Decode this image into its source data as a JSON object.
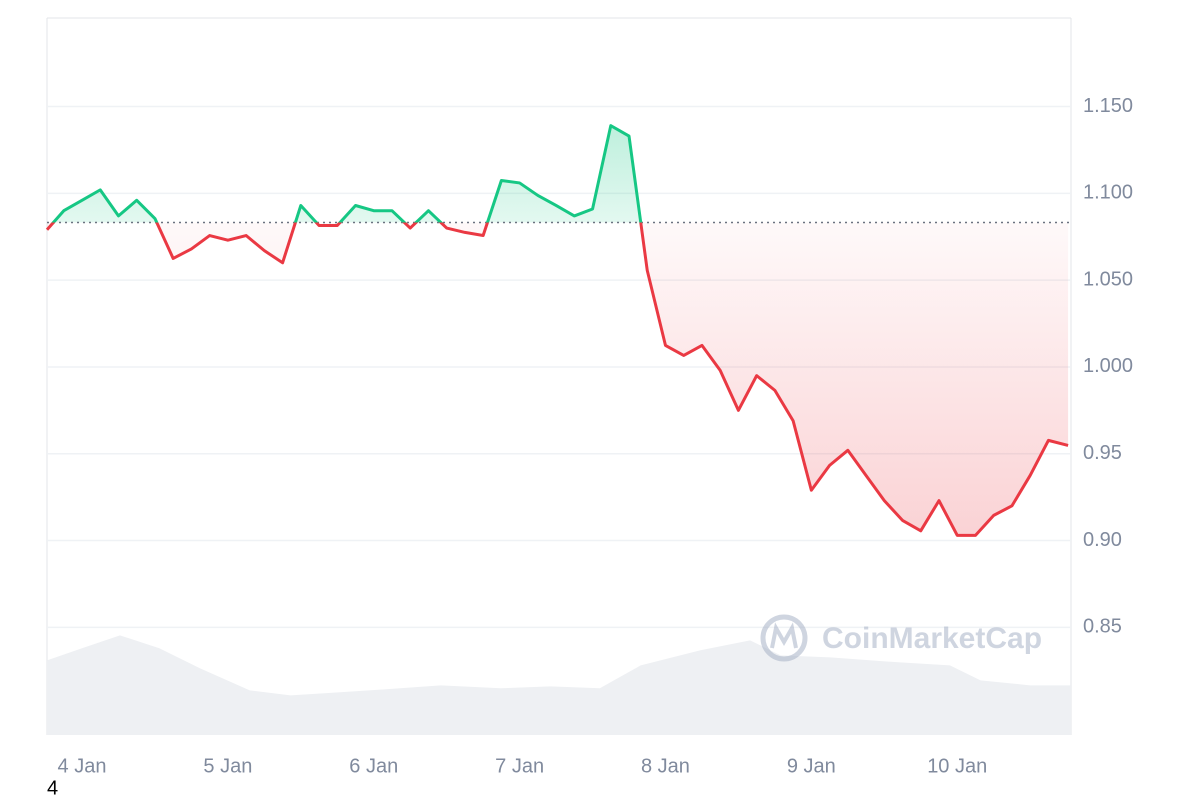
{
  "chart_data": {
    "type": "line",
    "watermark": "CoinMarketCap",
    "footer_text": "4",
    "x": [
      3.76,
      3.875,
      4,
      4.125,
      4.25,
      4.375,
      4.5,
      4.625,
      4.75,
      4.875,
      5,
      5.125,
      5.25,
      5.375,
      5.5,
      5.625,
      5.75,
      5.875,
      6,
      6.125,
      6.25,
      6.375,
      6.5,
      6.625,
      6.75,
      6.875,
      7,
      7.125,
      7.25,
      7.375,
      7.5,
      7.625,
      7.75,
      7.875,
      8,
      8.125,
      8.25,
      8.375,
      8.5,
      8.625,
      8.75,
      8.875,
      9,
      9.125,
      9.25,
      9.375,
      9.5,
      9.625,
      9.75,
      9.875,
      10,
      10.125,
      10.25,
      10.375,
      10.5,
      10.625,
      10.76
    ],
    "series": [
      {
        "values": [
          1.079,
          1.09,
          1.096,
          1.102,
          1.087,
          1.096,
          1.0855,
          1.0625,
          1.068,
          1.0757,
          1.073,
          1.0757,
          1.067,
          1.06,
          1.093,
          1.0815,
          1.0815,
          1.093,
          1.09,
          1.09,
          1.08,
          1.09,
          1.08,
          1.0775,
          1.0757,
          1.1074,
          1.106,
          1.0988,
          1.093,
          1.087,
          1.091,
          1.139,
          1.133,
          1.0556,
          1.0124,
          1.0066,
          1.0124,
          0.998,
          0.975,
          0.995,
          0.9865,
          0.969,
          0.929,
          0.9433,
          0.952,
          0.9375,
          0.923,
          0.9116,
          0.9056,
          0.923,
          0.903,
          0.903,
          0.9145,
          0.92,
          0.9375,
          0.9577,
          0.9548
        ],
        "color_above": "#16c784",
        "color_below": "#ea3943"
      }
    ],
    "baseline": 1.0832,
    "volume": {
      "x": [
        3.76,
        4.0,
        4.26,
        4.53,
        4.81,
        5.15,
        5.43,
        5.77,
        6.18,
        6.46,
        6.87,
        7.21,
        7.55,
        7.83,
        8.24,
        8.58,
        8.79,
        9.13,
        9.61,
        9.95,
        10.16,
        10.5,
        10.78
      ],
      "values": [
        0.831,
        0.838,
        0.8454,
        0.838,
        0.8264,
        0.8137,
        0.8108,
        0.8126,
        0.8149,
        0.8166,
        0.8149,
        0.816,
        0.8149,
        0.8281,
        0.8368,
        0.8425,
        0.8339,
        0.8327,
        0.8298,
        0.8281,
        0.8195,
        0.8166,
        0.8166
      ],
      "color": "#eef0f3"
    },
    "xlim": [
      3.76,
      10.78
    ],
    "xticks": [
      {
        "value": 4,
        "label": "4 Jan"
      },
      {
        "value": 5,
        "label": "5 Jan"
      },
      {
        "value": 6,
        "label": "6 Jan"
      },
      {
        "value": 7,
        "label": "7 Jan"
      },
      {
        "value": 8,
        "label": "8 Jan"
      },
      {
        "value": 9,
        "label": "9 Jan"
      },
      {
        "value": 10,
        "label": "10 Jan"
      }
    ],
    "ylim": [
      0.788,
      1.201
    ],
    "yticks": [
      {
        "value": 1.15,
        "label": "1.150"
      },
      {
        "value": 1.1,
        "label": "1.100"
      },
      {
        "value": 1.05,
        "label": "1.050"
      },
      {
        "value": 1,
        "label": "1.000"
      },
      0.95,
      {
        "value": 0.9,
        "label": "0.90"
      },
      0.85
    ],
    "grid": true
  }
}
